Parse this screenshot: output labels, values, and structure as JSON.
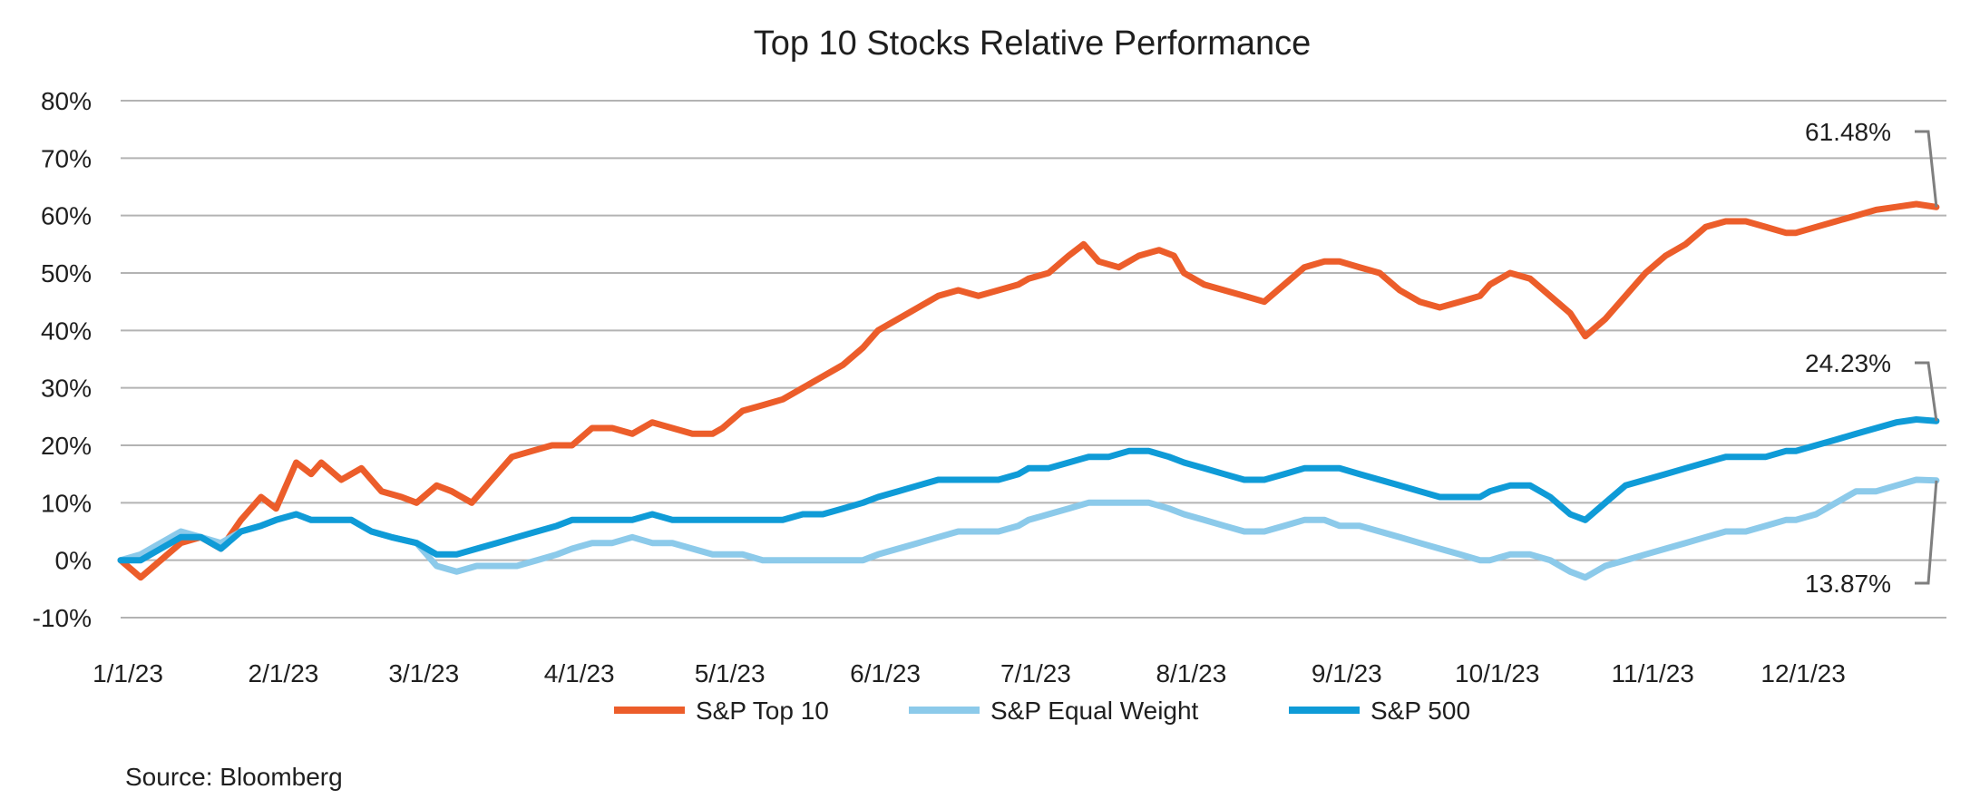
{
  "chart_data": {
    "type": "line",
    "title": "Top 10 Stocks Relative Performance",
    "xlabel": "",
    "ylabel": "",
    "ylim": [
      -10,
      80
    ],
    "y_ticks": [
      80,
      70,
      60,
      50,
      40,
      30,
      20,
      10,
      0,
      -10
    ],
    "y_tick_labels": [
      "80%",
      "70%",
      "60%",
      "50%",
      "40%",
      "30%",
      "20%",
      "10%",
      "0%",
      "-10%"
    ],
    "x_ticks": [
      0,
      31,
      59,
      90,
      120,
      151,
      181,
      212,
      243,
      273,
      304,
      334
    ],
    "x_tick_labels": [
      "1/1/23",
      "2/1/23",
      "3/1/23",
      "4/1/23",
      "5/1/23",
      "6/1/23",
      "7/1/23",
      "8/1/23",
      "9/1/23",
      "10/1/23",
      "11/1/23",
      "12/1/23"
    ],
    "x_range": [
      0,
      364
    ],
    "grid": true,
    "legend_position": "bottom",
    "series": [
      {
        "name": "S&P Top 10",
        "color": "#ec5d2a",
        "points": [
          [
            0,
            0
          ],
          [
            4,
            -3
          ],
          [
            8,
            0
          ],
          [
            12,
            3
          ],
          [
            16,
            4
          ],
          [
            20,
            2
          ],
          [
            24,
            7
          ],
          [
            28,
            11
          ],
          [
            31,
            9
          ],
          [
            35,
            17
          ],
          [
            38,
            15
          ],
          [
            40,
            17
          ],
          [
            44,
            14
          ],
          [
            48,
            16
          ],
          [
            52,
            12
          ],
          [
            56,
            11
          ],
          [
            59,
            10
          ],
          [
            63,
            13
          ],
          [
            66,
            12
          ],
          [
            70,
            10
          ],
          [
            74,
            14
          ],
          [
            78,
            18
          ],
          [
            82,
            19
          ],
          [
            86,
            20
          ],
          [
            90,
            20
          ],
          [
            94,
            23
          ],
          [
            98,
            23
          ],
          [
            102,
            22
          ],
          [
            106,
            24
          ],
          [
            110,
            23
          ],
          [
            114,
            22
          ],
          [
            118,
            22
          ],
          [
            120,
            23
          ],
          [
            124,
            26
          ],
          [
            128,
            27
          ],
          [
            132,
            28
          ],
          [
            136,
            30
          ],
          [
            140,
            32
          ],
          [
            144,
            34
          ],
          [
            148,
            37
          ],
          [
            151,
            40
          ],
          [
            155,
            42
          ],
          [
            159,
            44
          ],
          [
            163,
            46
          ],
          [
            167,
            47
          ],
          [
            171,
            46
          ],
          [
            175,
            47
          ],
          [
            179,
            48
          ],
          [
            181,
            49
          ],
          [
            185,
            50
          ],
          [
            189,
            53
          ],
          [
            192,
            55
          ],
          [
            195,
            52
          ],
          [
            199,
            51
          ],
          [
            203,
            53
          ],
          [
            207,
            54
          ],
          [
            210,
            53
          ],
          [
            212,
            50
          ],
          [
            216,
            48
          ],
          [
            220,
            47
          ],
          [
            224,
            46
          ],
          [
            228,
            45
          ],
          [
            232,
            48
          ],
          [
            236,
            51
          ],
          [
            240,
            52
          ],
          [
            243,
            52
          ],
          [
            247,
            51
          ],
          [
            251,
            50
          ],
          [
            255,
            47
          ],
          [
            259,
            45
          ],
          [
            263,
            44
          ],
          [
            267,
            45
          ],
          [
            271,
            46
          ],
          [
            273,
            48
          ],
          [
            277,
            50
          ],
          [
            281,
            49
          ],
          [
            285,
            46
          ],
          [
            289,
            43
          ],
          [
            292,
            39
          ],
          [
            296,
            42
          ],
          [
            300,
            46
          ],
          [
            304,
            50
          ],
          [
            308,
            53
          ],
          [
            312,
            55
          ],
          [
            316,
            58
          ],
          [
            320,
            59
          ],
          [
            324,
            59
          ],
          [
            328,
            58
          ],
          [
            332,
            57
          ],
          [
            334,
            57
          ],
          [
            338,
            58
          ],
          [
            342,
            59
          ],
          [
            346,
            60
          ],
          [
            350,
            61
          ],
          [
            354,
            61.5
          ],
          [
            358,
            62
          ],
          [
            362,
            61.48
          ]
        ]
      },
      {
        "name": "S&P Equal Weight",
        "color": "#8ccaea",
        "points": [
          [
            0,
            0
          ],
          [
            4,
            1
          ],
          [
            8,
            3
          ],
          [
            12,
            5
          ],
          [
            16,
            4
          ],
          [
            20,
            3
          ],
          [
            24,
            5
          ],
          [
            28,
            6
          ],
          [
            31,
            7
          ],
          [
            35,
            8
          ],
          [
            38,
            7
          ],
          [
            42,
            7
          ],
          [
            46,
            7
          ],
          [
            50,
            5
          ],
          [
            54,
            4
          ],
          [
            59,
            3
          ],
          [
            63,
            -1
          ],
          [
            67,
            -2
          ],
          [
            71,
            -1
          ],
          [
            75,
            -1
          ],
          [
            79,
            -1
          ],
          [
            83,
            0
          ],
          [
            87,
            1
          ],
          [
            90,
            2
          ],
          [
            94,
            3
          ],
          [
            98,
            3
          ],
          [
            102,
            4
          ],
          [
            106,
            3
          ],
          [
            110,
            3
          ],
          [
            114,
            2
          ],
          [
            118,
            1
          ],
          [
            120,
            1
          ],
          [
            124,
            1
          ],
          [
            128,
            0
          ],
          [
            132,
            0
          ],
          [
            136,
            0
          ],
          [
            140,
            0
          ],
          [
            144,
            0
          ],
          [
            148,
            0
          ],
          [
            151,
            1
          ],
          [
            155,
            2
          ],
          [
            159,
            3
          ],
          [
            163,
            4
          ],
          [
            167,
            5
          ],
          [
            171,
            5
          ],
          [
            175,
            5
          ],
          [
            179,
            6
          ],
          [
            181,
            7
          ],
          [
            185,
            8
          ],
          [
            189,
            9
          ],
          [
            193,
            10
          ],
          [
            197,
            10
          ],
          [
            201,
            10
          ],
          [
            205,
            10
          ],
          [
            209,
            9
          ],
          [
            212,
            8
          ],
          [
            216,
            7
          ],
          [
            220,
            6
          ],
          [
            224,
            5
          ],
          [
            228,
            5
          ],
          [
            232,
            6
          ],
          [
            236,
            7
          ],
          [
            240,
            7
          ],
          [
            243,
            6
          ],
          [
            247,
            6
          ],
          [
            251,
            5
          ],
          [
            255,
            4
          ],
          [
            259,
            3
          ],
          [
            263,
            2
          ],
          [
            267,
            1
          ],
          [
            271,
            0
          ],
          [
            273,
            0
          ],
          [
            277,
            1
          ],
          [
            281,
            1
          ],
          [
            285,
            0
          ],
          [
            289,
            -2
          ],
          [
            292,
            -3
          ],
          [
            296,
            -1
          ],
          [
            300,
            0
          ],
          [
            304,
            1
          ],
          [
            308,
            2
          ],
          [
            312,
            3
          ],
          [
            316,
            4
          ],
          [
            320,
            5
          ],
          [
            324,
            5
          ],
          [
            328,
            6
          ],
          [
            332,
            7
          ],
          [
            334,
            7
          ],
          [
            338,
            8
          ],
          [
            342,
            10
          ],
          [
            346,
            12
          ],
          [
            350,
            12
          ],
          [
            354,
            13
          ],
          [
            358,
            14
          ],
          [
            362,
            13.87
          ]
        ]
      },
      {
        "name": "S&P 500",
        "color": "#0f9bd7",
        "points": [
          [
            0,
            0
          ],
          [
            4,
            0
          ],
          [
            8,
            2
          ],
          [
            12,
            4
          ],
          [
            16,
            4
          ],
          [
            20,
            2
          ],
          [
            24,
            5
          ],
          [
            28,
            6
          ],
          [
            31,
            7
          ],
          [
            35,
            8
          ],
          [
            38,
            7
          ],
          [
            42,
            7
          ],
          [
            46,
            7
          ],
          [
            50,
            5
          ],
          [
            54,
            4
          ],
          [
            59,
            3
          ],
          [
            63,
            1
          ],
          [
            67,
            1
          ],
          [
            71,
            2
          ],
          [
            75,
            3
          ],
          [
            79,
            4
          ],
          [
            83,
            5
          ],
          [
            87,
            6
          ],
          [
            90,
            7
          ],
          [
            94,
            7
          ],
          [
            98,
            7
          ],
          [
            102,
            7
          ],
          [
            106,
            8
          ],
          [
            110,
            7
          ],
          [
            114,
            7
          ],
          [
            118,
            7
          ],
          [
            120,
            7
          ],
          [
            124,
            7
          ],
          [
            128,
            7
          ],
          [
            132,
            7
          ],
          [
            136,
            8
          ],
          [
            140,
            8
          ],
          [
            144,
            9
          ],
          [
            148,
            10
          ],
          [
            151,
            11
          ],
          [
            155,
            12
          ],
          [
            159,
            13
          ],
          [
            163,
            14
          ],
          [
            167,
            14
          ],
          [
            171,
            14
          ],
          [
            175,
            14
          ],
          [
            179,
            15
          ],
          [
            181,
            16
          ],
          [
            185,
            16
          ],
          [
            189,
            17
          ],
          [
            193,
            18
          ],
          [
            197,
            18
          ],
          [
            201,
            19
          ],
          [
            205,
            19
          ],
          [
            209,
            18
          ],
          [
            212,
            17
          ],
          [
            216,
            16
          ],
          [
            220,
            15
          ],
          [
            224,
            14
          ],
          [
            228,
            14
          ],
          [
            232,
            15
          ],
          [
            236,
            16
          ],
          [
            240,
            16
          ],
          [
            243,
            16
          ],
          [
            247,
            15
          ],
          [
            251,
            14
          ],
          [
            255,
            13
          ],
          [
            259,
            12
          ],
          [
            263,
            11
          ],
          [
            267,
            11
          ],
          [
            271,
            11
          ],
          [
            273,
            12
          ],
          [
            277,
            13
          ],
          [
            281,
            13
          ],
          [
            285,
            11
          ],
          [
            289,
            8
          ],
          [
            292,
            7
          ],
          [
            296,
            10
          ],
          [
            300,
            13
          ],
          [
            304,
            14
          ],
          [
            308,
            15
          ],
          [
            312,
            16
          ],
          [
            316,
            17
          ],
          [
            320,
            18
          ],
          [
            324,
            18
          ],
          [
            328,
            18
          ],
          [
            332,
            19
          ],
          [
            334,
            19
          ],
          [
            338,
            20
          ],
          [
            342,
            21
          ],
          [
            346,
            22
          ],
          [
            350,
            23
          ],
          [
            354,
            24
          ],
          [
            358,
            24.5
          ],
          [
            362,
            24.23
          ]
        ]
      }
    ],
    "annotations": [
      {
        "text": "61.48%",
        "series": "S&P Top 10",
        "value": 61.48
      },
      {
        "text": "24.23%",
        "series": "S&P 500",
        "value": 24.23
      },
      {
        "text": "13.87%",
        "series": "S&P Equal Weight",
        "value": 13.87
      }
    ],
    "source": "Source: Bloomberg"
  }
}
